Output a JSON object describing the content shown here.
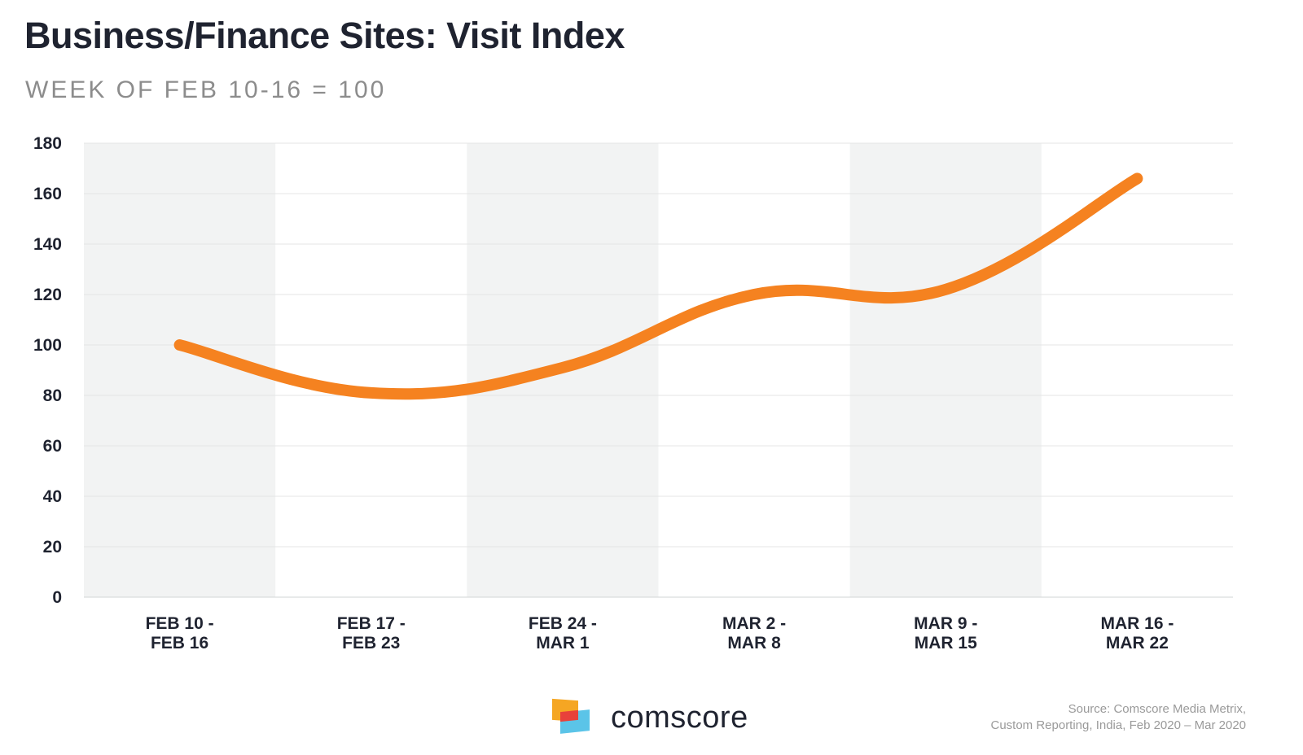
{
  "chart_data": {
    "type": "line",
    "title": "Business/Finance Sites: Visit Index",
    "subtitle": "WEEK OF FEB 10-16 = 100",
    "categories": [
      [
        "FEB 10 -",
        "FEB 16"
      ],
      [
        "FEB 17 -",
        "FEB 23"
      ],
      [
        "FEB 24 -",
        "MAR 1"
      ],
      [
        "MAR 2 -",
        "MAR 8"
      ],
      [
        "MAR 9 -",
        "MAR 15"
      ],
      [
        "MAR 16 -",
        "MAR 22"
      ]
    ],
    "series": [
      {
        "values": [
          100,
          81,
          91,
          120,
          122,
          166
        ],
        "color": "#f58220"
      }
    ],
    "ylim": [
      0,
      180
    ],
    "yticks": [
      0,
      20,
      40,
      60,
      80,
      100,
      120,
      140,
      160,
      180
    ],
    "grid": true,
    "band_color": "#f2f3f3",
    "xlabel": "",
    "ylabel": ""
  },
  "logo": {
    "icon": "comscore-logo-icon",
    "text": "comscore"
  },
  "source": {
    "line1": "Source: Comscore Media Metrix,",
    "line2": "Custom Reporting, India, Feb 2020 – Mar 2020"
  }
}
